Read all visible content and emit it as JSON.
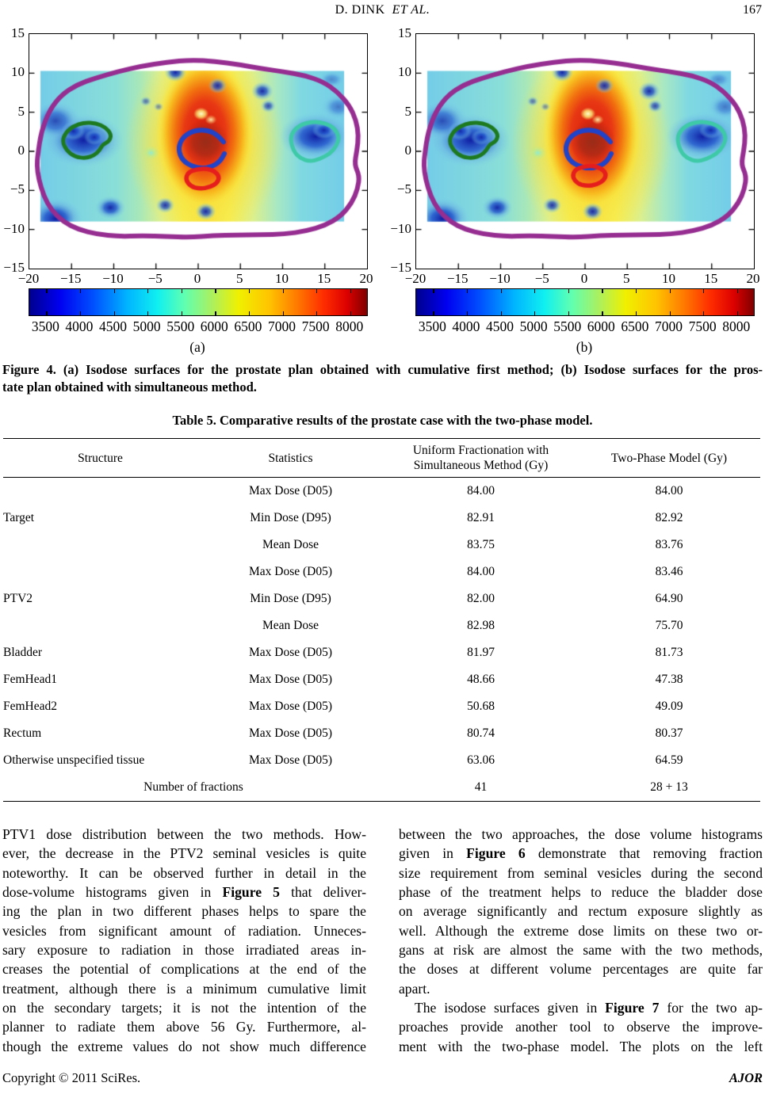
{
  "header": {
    "authors": "D. DINK",
    "et_al": "ET  AL.",
    "page_number": "167"
  },
  "figure": {
    "axis": {
      "y_ticks": [
        "15",
        "10",
        "5",
        "0",
        "−5",
        "−10",
        "−15"
      ],
      "x_ticks": [
        "−20",
        "−15",
        "−10",
        "−5",
        "0",
        "5",
        "10",
        "15",
        "20"
      ],
      "colorbar_labels": [
        "3500",
        "4000",
        "4500",
        "5000",
        "5500",
        "6000",
        "6500",
        "7000",
        "7500",
        "8000"
      ]
    },
    "panels": [
      {
        "label": "(a)"
      },
      {
        "label": "(b)"
      }
    ],
    "contours": [
      {
        "name": "body-outline",
        "color": "#962d91"
      },
      {
        "name": "left-femoral-head",
        "color": "#1e7a1e"
      },
      {
        "name": "right-femoral-head",
        "color": "#3ec9a7"
      },
      {
        "name": "prostate-ptv",
        "color": "#2143c8"
      },
      {
        "name": "rectum",
        "color": "#e51d1d"
      }
    ],
    "caption": [
      {
        "lines": [
          "Figure 4. (a) Isodose surfaces for the prostate plan obtained with cumulative first method; (b) Isodose surfaces for the pros-",
          "tate plan obtained with simultaneous method."
        ],
        "justify_last": false
      }
    ]
  },
  "chart_data": [
    {
      "type": "heatmap",
      "title": "Isodose surfaces, prostate plan (cumulative first method)",
      "xlim": [
        -20,
        20
      ],
      "ylim": [
        -15,
        15
      ],
      "x_ticks": [
        -20,
        -15,
        -10,
        -5,
        0,
        5,
        10,
        15,
        20
      ],
      "y_ticks": [
        15,
        10,
        5,
        0,
        -5,
        -10,
        -15
      ],
      "colorbar_ticks": [
        3500,
        4000,
        4500,
        5000,
        5500,
        6000,
        6500,
        7000,
        7500,
        8000
      ],
      "colormap": "jet",
      "panel_label": "(a)",
      "features": "hot red core ~8000 centered near (1,1.5); cyan background ~5000; dark-blue cold regions ~3500 at femoral heads (-13.5,1.5) and (14,2)"
    },
    {
      "type": "heatmap",
      "title": "Isodose surfaces, prostate plan (simultaneous method)",
      "xlim": [
        -20,
        20
      ],
      "ylim": [
        -15,
        15
      ],
      "x_ticks": [
        -20,
        -15,
        -10,
        -5,
        0,
        5,
        10,
        15,
        20
      ],
      "y_ticks": [
        15,
        10,
        5,
        0,
        -5,
        -10,
        -15
      ],
      "colorbar_ticks": [
        3500,
        4000,
        4500,
        5000,
        5500,
        6000,
        6500,
        7000,
        7500,
        8000
      ],
      "colormap": "jet",
      "panel_label": "(b)",
      "features": "nearly identical distribution to panel (a)"
    }
  ],
  "table": {
    "title": "Table 5. Comparative results of the prostate case with the two-phase model.",
    "columns": [
      "Structure",
      "Statistics",
      "Uniform Fractionation with\nSimultaneous Method (Gy)",
      "Two-Phase Model (Gy)"
    ],
    "rows": [
      {
        "structure": "",
        "statistics": "Max Dose (D05)",
        "uniform": "84.00",
        "two_phase": "84.00"
      },
      {
        "structure": "Target",
        "statistics": "Min Dose (D95)",
        "uniform": "82.91",
        "two_phase": "82.92"
      },
      {
        "structure": "",
        "statistics": "Mean Dose",
        "uniform": "83.75",
        "two_phase": "83.76"
      },
      {
        "structure": "",
        "statistics": "Max Dose (D05)",
        "uniform": "84.00",
        "two_phase": "83.46"
      },
      {
        "structure": "PTV2",
        "statistics": "Min Dose (D95)",
        "uniform": "82.00",
        "two_phase": "64.90"
      },
      {
        "structure": "",
        "statistics": "Mean Dose",
        "uniform": "82.98",
        "two_phase": "75.70"
      },
      {
        "structure": "Bladder",
        "statistics": "Max Dose (D05)",
        "uniform": "81.97",
        "two_phase": "81.73"
      },
      {
        "structure": "FemHead1",
        "statistics": "Max Dose (D05)",
        "uniform": "48.66",
        "two_phase": "47.38"
      },
      {
        "structure": "FemHead2",
        "statistics": "Max Dose (D05)",
        "uniform": "50.68",
        "two_phase": "49.09"
      },
      {
        "structure": "Rectum",
        "statistics": "Max Dose (D05)",
        "uniform": "80.74",
        "two_phase": "80.37"
      },
      {
        "structure": "Otherwise unspecified tissue",
        "statistics": "Max Dose (D05)",
        "uniform": "63.06",
        "two_phase": "64.59"
      },
      {
        "label": "Number of fractions",
        "uniform": "41",
        "two_phase": "28 + 13"
      }
    ]
  },
  "body": {
    "col1": [
      {
        "justify_last": true,
        "lines": [
          "PTV1 dose distribution between the two methods. How-",
          "ever, the decrease in the PTV2 seminal vesicles is quite",
          "noteworthy. It can be observed further in detail in the",
          "dose-volume histograms given in **Figure 5** that deliver-",
          "ing the plan in two different phases helps to spare the",
          "vesicles from significant amount of radiation. Unneces-",
          "sary exposure to radiation in those irradiated areas in-",
          "creases the potential of complications at the end of the",
          "treatment, although there is a minimum cumulative limit",
          "on the secondary targets; it is not the intention of the",
          "planner to radiate them above 56 Gy. Furthermore, al-",
          "though the extreme values do not show much difference"
        ]
      }
    ],
    "col2": [
      {
        "justify_last": false,
        "lines": [
          "between the two approaches, the dose volume histograms",
          "given in **Figure 6** demonstrate that removing fraction",
          "size requirement from seminal vesicles during the second",
          "phase of the treatment helps to reduce the bladder dose",
          "on average significantly and rectum exposure slightly as",
          "well. Although the extreme dose limits on these two or-",
          "gans at risk are almost the same with the two methods,",
          "the doses at different volume percentages are quite far",
          "apart."
        ]
      },
      {
        "justify_last": true,
        "indent_first": true,
        "lines": [
          "The isodose surfaces given in **Figure 7** for the two ap-",
          "proaches provide another tool to observe the improve-",
          "ment with the two-phase model. The plots on the left"
        ]
      }
    ]
  },
  "footer": {
    "copyright": "Copyright © 2011 SciRes.",
    "journal": "AJOR"
  }
}
